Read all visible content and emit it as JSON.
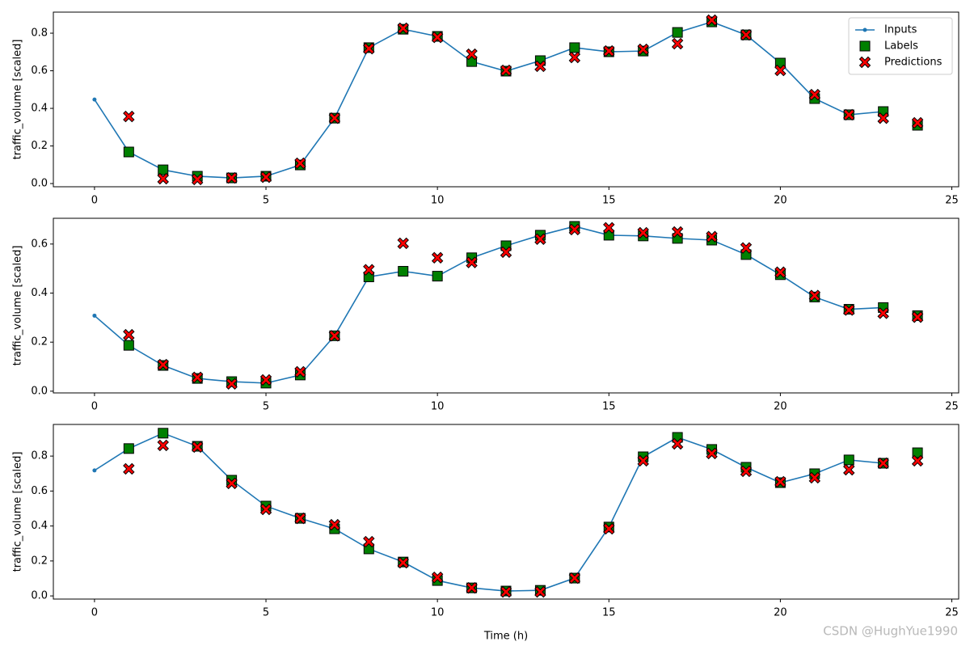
{
  "watermark": "CSDN @HughYue1990",
  "chart_data": [
    {
      "type": "line",
      "ylabel": "traffic_volume [scaled]",
      "legend": "upper right",
      "xlim": [
        -1.2,
        25.2
      ],
      "xticks": [
        0,
        5,
        10,
        15,
        20,
        25
      ],
      "ylim": [
        -0.017,
        0.912
      ],
      "yticks": [
        {
          "value": 0,
          "label": "0.0"
        },
        0.2,
        0.4,
        0.6,
        0.8
      ],
      "series": [
        {
          "name": "Inputs",
          "color": "#1f77b4",
          "marker": "o",
          "x": [
            0,
            1,
            2,
            3,
            4,
            5,
            6,
            7,
            8,
            9,
            10,
            11,
            12,
            13,
            14,
            15,
            16,
            17,
            18,
            19,
            20,
            21,
            22,
            23
          ],
          "values": [
            0.447,
            0.168,
            0.073,
            0.039,
            0.03,
            0.039,
            0.099,
            0.348,
            0.723,
            0.821,
            0.783,
            0.649,
            0.598,
            0.654,
            0.723,
            0.701,
            0.705,
            0.804,
            0.86,
            0.791,
            0.641,
            0.452,
            0.366,
            0.383
          ]
        },
        {
          "name": "Labels",
          "color": "#008000",
          "marker": "s",
          "x": [
            1,
            2,
            3,
            4,
            5,
            6,
            7,
            8,
            9,
            10,
            11,
            12,
            13,
            14,
            15,
            16,
            17,
            18,
            19,
            20,
            21,
            22,
            23,
            24
          ],
          "values": [
            0.168,
            0.073,
            0.039,
            0.03,
            0.039,
            0.099,
            0.348,
            0.723,
            0.821,
            0.783,
            0.649,
            0.598,
            0.654,
            0.723,
            0.701,
            0.705,
            0.804,
            0.86,
            0.791,
            0.641,
            0.452,
            0.366,
            0.383,
            0.31
          ]
        },
        {
          "name": "Predictions",
          "color": "#ff0000",
          "marker": "X",
          "x": [
            1,
            2,
            3,
            4,
            5,
            6,
            7,
            8,
            9,
            10,
            11,
            12,
            13,
            14,
            15,
            16,
            17,
            18,
            19,
            20,
            21,
            22,
            23,
            24
          ],
          "values": [
            0.357,
            0.026,
            0.022,
            0.03,
            0.034,
            0.108,
            0.348,
            0.718,
            0.826,
            0.778,
            0.688,
            0.602,
            0.624,
            0.671,
            0.705,
            0.714,
            0.744,
            0.869,
            0.791,
            0.602,
            0.473,
            0.366,
            0.348,
            0.323
          ]
        }
      ]
    },
    {
      "type": "line",
      "ylabel": "traffic_volume [scaled]",
      "xlim": [
        -1.2,
        25.2
      ],
      "xticks": [
        0,
        5,
        10,
        15,
        20,
        25
      ],
      "ylim": [
        -0.007,
        0.705
      ],
      "yticks": [
        {
          "value": 0,
          "label": "0.0"
        },
        0.2,
        0.4,
        0.6
      ],
      "series": [
        {
          "name": "Inputs",
          "color": "#1f77b4",
          "marker": "o",
          "x": [
            0,
            1,
            2,
            3,
            4,
            5,
            6,
            7,
            8,
            9,
            10,
            11,
            12,
            13,
            14,
            15,
            16,
            17,
            18,
            19,
            20,
            21,
            22,
            23
          ],
          "values": [
            0.308,
            0.187,
            0.105,
            0.052,
            0.039,
            0.033,
            0.066,
            0.226,
            0.466,
            0.489,
            0.469,
            0.544,
            0.593,
            0.636,
            0.672,
            0.636,
            0.633,
            0.623,
            0.616,
            0.557,
            0.475,
            0.384,
            0.334,
            0.341
          ]
        },
        {
          "name": "Labels",
          "color": "#008000",
          "marker": "s",
          "x": [
            1,
            2,
            3,
            4,
            5,
            6,
            7,
            8,
            9,
            10,
            11,
            12,
            13,
            14,
            15,
            16,
            17,
            18,
            19,
            20,
            21,
            22,
            23,
            24
          ],
          "values": [
            0.187,
            0.105,
            0.052,
            0.039,
            0.033,
            0.066,
            0.226,
            0.466,
            0.489,
            0.469,
            0.544,
            0.593,
            0.636,
            0.672,
            0.636,
            0.633,
            0.623,
            0.616,
            0.557,
            0.475,
            0.384,
            0.334,
            0.341,
            0.308
          ]
        },
        {
          "name": "Predictions",
          "color": "#ff0000",
          "marker": "X",
          "x": [
            1,
            2,
            3,
            4,
            5,
            6,
            7,
            8,
            9,
            10,
            11,
            12,
            13,
            14,
            15,
            16,
            17,
            18,
            19,
            20,
            21,
            22,
            23,
            24
          ],
          "values": [
            0.23,
            0.108,
            0.056,
            0.03,
            0.046,
            0.079,
            0.226,
            0.495,
            0.603,
            0.544,
            0.525,
            0.567,
            0.62,
            0.659,
            0.666,
            0.646,
            0.649,
            0.63,
            0.584,
            0.485,
            0.39,
            0.331,
            0.318,
            0.302
          ]
        }
      ]
    },
    {
      "type": "line",
      "ylabel": "traffic_volume [scaled]",
      "xlabel": "Time (h)",
      "xlim": [
        -1.2,
        25.2
      ],
      "xticks": [
        0,
        5,
        10,
        15,
        20,
        25
      ],
      "ylim": [
        -0.018,
        0.981
      ],
      "yticks": [
        {
          "value": 0,
          "label": "0.0"
        },
        0.2,
        0.4,
        0.6,
        0.8
      ],
      "series": [
        {
          "name": "Inputs",
          "color": "#1f77b4",
          "marker": "o",
          "x": [
            0,
            1,
            2,
            3,
            4,
            5,
            6,
            7,
            8,
            9,
            10,
            11,
            12,
            13,
            14,
            15,
            16,
            17,
            18,
            19,
            20,
            21,
            22,
            23
          ],
          "values": [
            0.718,
            0.843,
            0.931,
            0.856,
            0.662,
            0.514,
            0.444,
            0.384,
            0.269,
            0.194,
            0.088,
            0.046,
            0.028,
            0.032,
            0.102,
            0.394,
            0.796,
            0.907,
            0.838,
            0.736,
            0.648,
            0.699,
            0.778,
            0.759
          ]
        },
        {
          "name": "Labels",
          "color": "#008000",
          "marker": "s",
          "x": [
            1,
            2,
            3,
            4,
            5,
            6,
            7,
            8,
            9,
            10,
            11,
            12,
            13,
            14,
            15,
            16,
            17,
            18,
            19,
            20,
            21,
            22,
            23,
            24
          ],
          "values": [
            0.843,
            0.931,
            0.856,
            0.662,
            0.514,
            0.444,
            0.384,
            0.269,
            0.194,
            0.088,
            0.046,
            0.028,
            0.032,
            0.102,
            0.394,
            0.796,
            0.907,
            0.838,
            0.736,
            0.648,
            0.699,
            0.778,
            0.759,
            0.819
          ]
        },
        {
          "name": "Predictions",
          "color": "#ff0000",
          "marker": "X",
          "x": [
            1,
            2,
            3,
            4,
            5,
            6,
            7,
            8,
            9,
            10,
            11,
            12,
            13,
            14,
            15,
            16,
            17,
            18,
            19,
            20,
            21,
            22,
            23,
            24
          ],
          "values": [
            0.727,
            0.861,
            0.852,
            0.644,
            0.495,
            0.444,
            0.407,
            0.31,
            0.19,
            0.106,
            0.046,
            0.023,
            0.023,
            0.102,
            0.384,
            0.773,
            0.87,
            0.815,
            0.713,
            0.653,
            0.676,
            0.722,
            0.759,
            0.773
          ]
        }
      ]
    }
  ]
}
